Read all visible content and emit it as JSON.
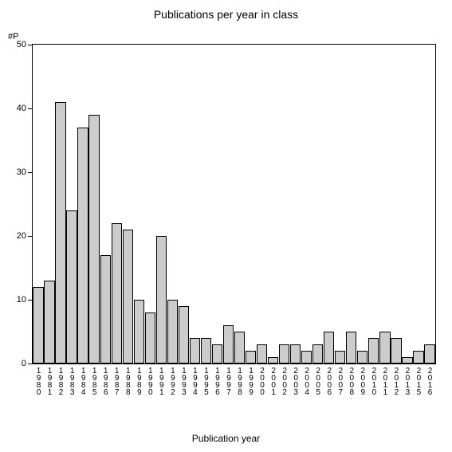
{
  "chart": {
    "type": "bar",
    "title": "Publications per year in class",
    "title_fontsize": 14,
    "y_axis_label": "#P",
    "x_axis_label": "Publication year",
    "label_fontsize": 12,
    "ylim": [
      0,
      50
    ],
    "ytick_step": 10,
    "yticks": [
      0,
      10,
      20,
      30,
      40,
      50
    ],
    "background_color": "#ffffff",
    "border_color": "#000000",
    "bar_fill": "#cccccc",
    "bar_border": "#000000",
    "bar_width_ratio": 0.95,
    "categories": [
      "1980",
      "1981",
      "1982",
      "1983",
      "1984",
      "1985",
      "1986",
      "1987",
      "1988",
      "1989",
      "1990",
      "1991",
      "1992",
      "1993",
      "1994",
      "1995",
      "1996",
      "1997",
      "1998",
      "1999",
      "2000",
      "2001",
      "2002",
      "2003",
      "2004",
      "2005",
      "2006",
      "2007",
      "2008",
      "2009",
      "2010",
      "2011",
      "2012",
      "2013",
      "2015",
      "2016"
    ],
    "values": [
      12,
      13,
      41,
      24,
      37,
      39,
      17,
      22,
      21,
      10,
      8,
      20,
      10,
      9,
      4,
      4,
      3,
      6,
      5,
      2,
      3,
      1,
      3,
      3,
      2,
      3,
      5,
      2,
      5,
      2,
      4,
      5,
      4,
      1,
      2,
      3
    ],
    "x_tick_fontsize": 10,
    "y_tick_fontsize": 11
  }
}
